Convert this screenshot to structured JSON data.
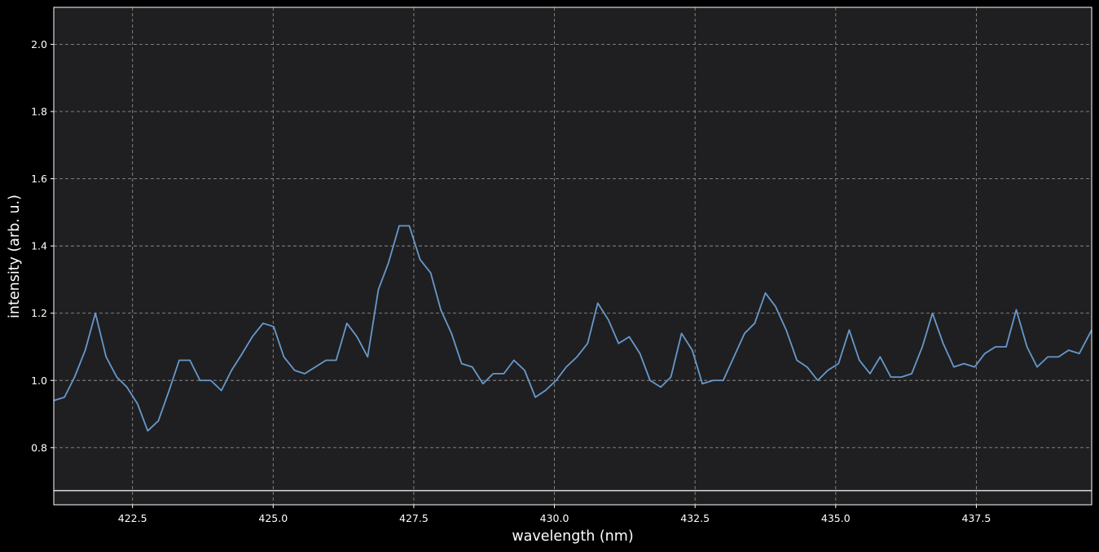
{
  "chart_data": {
    "type": "line",
    "xlabel": "wavelength (nm)",
    "ylabel": "intensity (arb. u.)",
    "xlim": [
      421.1,
      439.55
    ],
    "ylim": [
      0.63,
      2.11
    ],
    "x_ticks": [
      422.5,
      425.0,
      427.5,
      430.0,
      432.5,
      435.0,
      437.5
    ],
    "x_tick_labels": [
      "422.5",
      "425.0",
      "427.5",
      "430.0",
      "432.5",
      "435.0",
      "437.5"
    ],
    "y_ticks": [
      0.8,
      1.0,
      1.2,
      1.4,
      1.6,
      1.8,
      2.0
    ],
    "y_tick_labels": [
      "0.8",
      "1.0",
      "1.2",
      "1.4",
      "1.6",
      "1.8",
      "2.0"
    ],
    "grid": true,
    "reference_line": {
      "y": 0.672,
      "color": "#d9d9d9"
    },
    "series": [
      {
        "color": "#6699cc",
        "x": [
          421.1,
          421.29,
          421.47,
          421.66,
          421.84,
          422.03,
          422.22,
          422.4,
          422.59,
          422.77,
          422.96,
          423.15,
          423.33,
          423.52,
          423.7,
          423.89,
          424.08,
          424.26,
          424.45,
          424.63,
          424.82,
          425.01,
          425.19,
          425.38,
          425.56,
          425.75,
          425.94,
          426.12,
          426.31,
          426.49,
          426.68,
          426.87,
          427.05,
          427.24,
          427.42,
          427.61,
          427.8,
          427.98,
          428.17,
          428.35,
          428.54,
          428.73,
          428.91,
          429.1,
          429.28,
          429.47,
          429.66,
          429.84,
          430.03,
          430.21,
          430.4,
          430.59,
          430.77,
          430.96,
          431.14,
          431.33,
          431.52,
          431.7,
          431.89,
          432.07,
          432.26,
          432.45,
          432.63,
          432.82,
          433.0,
          433.19,
          433.38,
          433.56,
          433.75,
          433.93,
          434.12,
          434.31,
          434.49,
          434.68,
          434.86,
          435.05,
          435.24,
          435.42,
          435.61,
          435.79,
          435.98,
          436.17,
          436.35,
          436.54,
          436.72,
          436.91,
          437.1,
          437.28,
          437.47,
          437.65,
          437.84,
          438.03,
          438.21,
          438.4,
          438.58,
          438.77,
          438.96,
          439.14,
          439.33,
          439.55
        ],
        "y": [
          0.94,
          0.95,
          1.01,
          1.09,
          1.2,
          1.07,
          1.01,
          0.98,
          0.93,
          0.85,
          0.88,
          0.97,
          1.06,
          1.06,
          1.0,
          1.0,
          0.97,
          1.03,
          1.08,
          1.13,
          1.17,
          1.16,
          1.07,
          1.03,
          1.02,
          1.04,
          1.06,
          1.06,
          1.17,
          1.13,
          1.07,
          1.27,
          1.35,
          1.46,
          1.46,
          1.36,
          1.32,
          1.21,
          1.14,
          1.05,
          1.04,
          0.99,
          1.02,
          1.02,
          1.06,
          1.03,
          0.95,
          0.97,
          1.0,
          1.04,
          1.07,
          1.11,
          1.23,
          1.18,
          1.11,
          1.13,
          1.08,
          1.0,
          0.98,
          1.01,
          1.14,
          1.09,
          0.99,
          1.0,
          1.0,
          1.07,
          1.14,
          1.17,
          1.26,
          1.22,
          1.15,
          1.06,
          1.04,
          1.0,
          1.03,
          1.05,
          1.15,
          1.06,
          1.02,
          1.07,
          1.01,
          1.01,
          1.02,
          1.1,
          1.2,
          1.11,
          1.04,
          1.05,
          1.04,
          1.08,
          1.1,
          1.1,
          1.21,
          1.1,
          1.04,
          1.07,
          1.07,
          1.09,
          1.08,
          1.15
        ]
      }
    ]
  },
  "colors": {
    "figure_background": "#000000",
    "plot_background": "#1f1f21",
    "axes_frame": "#ffffff",
    "grid": "#8a8a8a"
  }
}
